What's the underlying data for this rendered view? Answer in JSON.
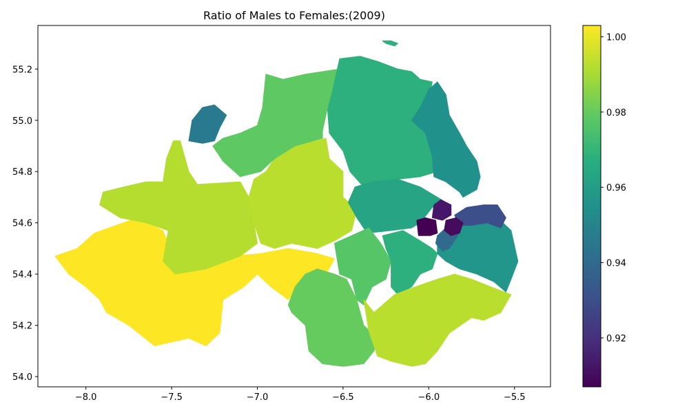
{
  "title": "Ratio of Males to Females:(2009)",
  "x_ticks": [
    {
      "value": -8.0,
      "label": "−8.0"
    },
    {
      "value": -7.5,
      "label": "−7.5"
    },
    {
      "value": -7.0,
      "label": "−7.0"
    },
    {
      "value": -6.5,
      "label": "−6.5"
    },
    {
      "value": -6.0,
      "label": "−6.0"
    },
    {
      "value": -5.5,
      "label": "−5.5"
    }
  ],
  "y_ticks": [
    {
      "value": 54.0,
      "label": "54.0"
    },
    {
      "value": 54.2,
      "label": "54.2"
    },
    {
      "value": 54.4,
      "label": "54.4"
    },
    {
      "value": 54.6,
      "label": "54.6"
    },
    {
      "value": 54.8,
      "label": "54.8"
    },
    {
      "value": 55.0,
      "label": "55.0"
    },
    {
      "value": 55.2,
      "label": "55.2"
    }
  ],
  "xlim": [
    -8.28,
    -5.29
  ],
  "ylim": [
    53.96,
    55.37
  ],
  "colorbar": {
    "range": [
      0.907,
      1.003
    ],
    "ticks": [
      {
        "value": 0.92,
        "label": "0.92"
      },
      {
        "value": 0.94,
        "label": "0.94"
      },
      {
        "value": 0.96,
        "label": "0.96"
      },
      {
        "value": 0.98,
        "label": "0.98"
      },
      {
        "value": 1.0,
        "label": "1.00"
      }
    ],
    "colormap": "viridis"
  },
  "chart_data": {
    "type": "choropleth",
    "title": "Ratio of Males to Females:(2009)",
    "xlabel": "",
    "ylabel": "",
    "regions": [
      {
        "value": 1.003,
        "outline": [
          [
            -8.18,
            54.47
          ],
          [
            -8.05,
            54.5
          ],
          [
            -7.95,
            54.56
          ],
          [
            -7.7,
            54.62
          ],
          [
            -7.55,
            54.57
          ],
          [
            -7.48,
            54.45
          ],
          [
            -7.3,
            54.42
          ],
          [
            -7.15,
            54.47
          ],
          [
            -6.98,
            54.48
          ],
          [
            -6.82,
            54.5
          ],
          [
            -6.65,
            54.48
          ],
          [
            -6.55,
            54.46
          ],
          [
            -6.6,
            54.4
          ],
          [
            -6.72,
            54.38
          ],
          [
            -6.82,
            54.3
          ],
          [
            -6.92,
            54.35
          ],
          [
            -7.0,
            54.4
          ],
          [
            -7.08,
            54.35
          ],
          [
            -7.2,
            54.3
          ],
          [
            -7.22,
            54.17
          ],
          [
            -7.3,
            54.12
          ],
          [
            -7.4,
            54.15
          ],
          [
            -7.6,
            54.12
          ],
          [
            -7.75,
            54.2
          ],
          [
            -7.88,
            54.25
          ],
          [
            -7.92,
            54.3
          ],
          [
            -8.0,
            54.35
          ],
          [
            -8.1,
            54.4
          ]
        ]
      },
      {
        "value": 0.992,
        "outline": [
          [
            -7.45,
            54.92
          ],
          [
            -7.4,
            54.8
          ],
          [
            -7.35,
            54.75
          ],
          [
            -7.1,
            54.76
          ],
          [
            -7.05,
            54.7
          ],
          [
            -7.02,
            54.6
          ],
          [
            -7.0,
            54.52
          ],
          [
            -7.1,
            54.47
          ],
          [
            -7.3,
            54.42
          ],
          [
            -7.48,
            54.4
          ],
          [
            -7.55,
            54.45
          ],
          [
            -7.52,
            54.57
          ],
          [
            -7.65,
            54.6
          ],
          [
            -7.8,
            54.62
          ],
          [
            -7.92,
            54.67
          ],
          [
            -7.9,
            54.72
          ],
          [
            -7.78,
            54.74
          ],
          [
            -7.65,
            54.76
          ],
          [
            -7.55,
            54.76
          ],
          [
            -7.53,
            54.85
          ],
          [
            -7.49,
            54.92
          ]
        ]
      },
      {
        "value": 0.993,
        "outline": [
          [
            -7.02,
            54.77
          ],
          [
            -6.95,
            54.8
          ],
          [
            -6.88,
            54.87
          ],
          [
            -6.78,
            54.9
          ],
          [
            -6.6,
            54.93
          ],
          [
            -6.58,
            54.85
          ],
          [
            -6.5,
            54.8
          ],
          [
            -6.5,
            54.7
          ],
          [
            -6.42,
            54.65
          ],
          [
            -6.45,
            54.57
          ],
          [
            -6.55,
            54.53
          ],
          [
            -6.65,
            54.5
          ],
          [
            -6.8,
            54.52
          ],
          [
            -6.9,
            54.5
          ],
          [
            -6.98,
            54.52
          ],
          [
            -7.02,
            54.6
          ],
          [
            -7.05,
            54.7
          ]
        ]
      },
      {
        "value": 0.979,
        "outline": [
          [
            -7.26,
            54.9
          ],
          [
            -7.2,
            54.93
          ],
          [
            -7.1,
            54.95
          ],
          [
            -7.0,
            54.98
          ],
          [
            -6.97,
            55.05
          ],
          [
            -6.95,
            55.18
          ],
          [
            -6.85,
            55.16
          ],
          [
            -6.72,
            55.18
          ],
          [
            -6.62,
            55.19
          ],
          [
            -6.52,
            55.2
          ],
          [
            -6.55,
            55.12
          ],
          [
            -6.59,
            55.05
          ],
          [
            -6.62,
            54.96
          ],
          [
            -6.62,
            54.93
          ],
          [
            -6.78,
            54.9
          ],
          [
            -6.9,
            54.85
          ],
          [
            -6.98,
            54.8
          ],
          [
            -7.1,
            54.78
          ],
          [
            -7.2,
            54.84
          ]
        ]
      },
      {
        "value": 0.946,
        "outline": [
          [
            -7.4,
            54.92
          ],
          [
            -7.38,
            55.0
          ],
          [
            -7.32,
            55.05
          ],
          [
            -7.25,
            55.06
          ],
          [
            -7.18,
            55.02
          ],
          [
            -7.22,
            54.97
          ],
          [
            -7.25,
            54.92
          ],
          [
            -7.32,
            54.91
          ]
        ]
      },
      {
        "value": 0.968,
        "outline": [
          [
            -6.52,
            55.24
          ],
          [
            -6.4,
            55.25
          ],
          [
            -6.3,
            55.23
          ],
          [
            -6.18,
            55.2
          ],
          [
            -6.1,
            55.19
          ],
          [
            -6.05,
            55.16
          ],
          [
            -5.98,
            55.15
          ],
          [
            -6.0,
            55.08
          ],
          [
            -6.05,
            55.02
          ],
          [
            -5.98,
            54.95
          ],
          [
            -5.95,
            54.87
          ],
          [
            -5.95,
            54.8
          ],
          [
            -6.05,
            54.78
          ],
          [
            -6.18,
            54.77
          ],
          [
            -6.33,
            54.76
          ],
          [
            -6.38,
            54.74
          ],
          [
            -6.46,
            54.8
          ],
          [
            -6.5,
            54.88
          ],
          [
            -6.58,
            54.95
          ],
          [
            -6.59,
            55.04
          ],
          [
            -6.56,
            55.12
          ]
        ]
      },
      {
        "value": 0.955,
        "outline": [
          [
            -6.05,
            55.05
          ],
          [
            -6.0,
            55.12
          ],
          [
            -5.95,
            55.15
          ],
          [
            -5.9,
            55.1
          ],
          [
            -5.88,
            55.02
          ],
          [
            -5.82,
            54.95
          ],
          [
            -5.78,
            54.9
          ],
          [
            -5.72,
            54.84
          ],
          [
            -5.7,
            54.78
          ],
          [
            -5.72,
            54.73
          ],
          [
            -5.8,
            54.7
          ],
          [
            -5.82,
            54.72
          ],
          [
            -5.9,
            54.76
          ],
          [
            -5.97,
            54.78
          ],
          [
            -5.98,
            54.86
          ],
          [
            -6.02,
            54.95
          ],
          [
            -6.1,
            55.0
          ]
        ]
      },
      {
        "value": 0.963,
        "outline": [
          [
            -6.43,
            54.74
          ],
          [
            -6.33,
            54.76
          ],
          [
            -6.18,
            54.77
          ],
          [
            -6.05,
            54.74
          ],
          [
            -5.95,
            54.7
          ],
          [
            -5.9,
            54.68
          ],
          [
            -5.98,
            54.66
          ],
          [
            -6.05,
            54.6
          ],
          [
            -6.1,
            54.58
          ],
          [
            -6.22,
            54.57
          ],
          [
            -6.36,
            54.56
          ],
          [
            -6.42,
            54.62
          ],
          [
            -6.47,
            54.68
          ]
        ]
      },
      {
        "value": 0.977,
        "outline": [
          [
            -6.55,
            54.52
          ],
          [
            -6.45,
            54.55
          ],
          [
            -6.35,
            54.58
          ],
          [
            -6.28,
            54.52
          ],
          [
            -6.22,
            54.45
          ],
          [
            -6.25,
            54.38
          ],
          [
            -6.33,
            54.35
          ],
          [
            -6.38,
            54.28
          ],
          [
            -6.42,
            54.3
          ],
          [
            -6.45,
            54.38
          ],
          [
            -6.52,
            54.4
          ]
        ]
      },
      {
        "value": 0.968,
        "outline": [
          [
            -6.27,
            54.55
          ],
          [
            -6.15,
            54.57
          ],
          [
            -6.05,
            54.53
          ],
          [
            -5.98,
            54.5
          ],
          [
            -5.95,
            54.48
          ],
          [
            -5.98,
            54.42
          ],
          [
            -6.05,
            54.4
          ],
          [
            -6.1,
            54.35
          ],
          [
            -6.18,
            54.32
          ],
          [
            -6.22,
            54.35
          ],
          [
            -6.22,
            54.45
          ],
          [
            -6.25,
            54.5
          ]
        ]
      },
      {
        "value": 0.98,
        "outline": [
          [
            -6.82,
            54.28
          ],
          [
            -6.78,
            54.35
          ],
          [
            -6.72,
            54.4
          ],
          [
            -6.65,
            54.42
          ],
          [
            -6.55,
            54.4
          ],
          [
            -6.48,
            54.38
          ],
          [
            -6.42,
            54.3
          ],
          [
            -6.38,
            54.2
          ],
          [
            -6.3,
            54.15
          ],
          [
            -6.32,
            54.1
          ],
          [
            -6.38,
            54.05
          ],
          [
            -6.5,
            54.04
          ],
          [
            -6.62,
            54.05
          ],
          [
            -6.7,
            54.1
          ],
          [
            -6.72,
            54.2
          ],
          [
            -6.8,
            54.25
          ]
        ]
      },
      {
        "value": 0.993,
        "outline": [
          [
            -6.38,
            54.3
          ],
          [
            -6.32,
            54.25
          ],
          [
            -6.2,
            54.32
          ],
          [
            -6.08,
            54.35
          ],
          [
            -5.95,
            54.38
          ],
          [
            -5.85,
            54.4
          ],
          [
            -5.75,
            54.38
          ],
          [
            -5.6,
            54.34
          ],
          [
            -5.52,
            54.32
          ],
          [
            -5.58,
            54.25
          ],
          [
            -5.68,
            54.22
          ],
          [
            -5.75,
            54.23
          ],
          [
            -5.88,
            54.17
          ],
          [
            -5.95,
            54.1
          ],
          [
            -6.02,
            54.05
          ],
          [
            -6.1,
            54.04
          ],
          [
            -6.22,
            54.06
          ],
          [
            -6.3,
            54.08
          ],
          [
            -6.35,
            54.18
          ]
        ]
      },
      {
        "value": 0.957,
        "outline": [
          [
            -5.95,
            54.55
          ],
          [
            -5.88,
            54.57
          ],
          [
            -5.75,
            54.6
          ],
          [
            -5.6,
            54.62
          ],
          [
            -5.52,
            54.57
          ],
          [
            -5.48,
            54.45
          ],
          [
            -5.52,
            54.38
          ],
          [
            -5.55,
            54.33
          ],
          [
            -5.62,
            54.37
          ],
          [
            -5.72,
            54.4
          ],
          [
            -5.82,
            54.42
          ],
          [
            -5.9,
            54.45
          ],
          [
            -5.95,
            54.48
          ]
        ]
      },
      {
        "value": 0.93,
        "outline": [
          [
            -5.85,
            54.63
          ],
          [
            -5.78,
            54.66
          ],
          [
            -5.68,
            54.67
          ],
          [
            -5.6,
            54.67
          ],
          [
            -5.55,
            54.62
          ],
          [
            -5.58,
            54.58
          ],
          [
            -5.66,
            54.6
          ],
          [
            -5.75,
            54.59
          ],
          [
            -5.82,
            54.59
          ]
        ]
      },
      {
        "value": 0.94,
        "outline": [
          [
            -5.95,
            54.55
          ],
          [
            -5.9,
            54.58
          ],
          [
            -5.85,
            54.59
          ],
          [
            -5.83,
            54.55
          ],
          [
            -5.88,
            54.5
          ],
          [
            -5.92,
            54.49
          ],
          [
            -5.96,
            54.52
          ]
        ]
      },
      {
        "value": 0.913,
        "outline": [
          [
            -5.97,
            54.67
          ],
          [
            -5.93,
            54.69
          ],
          [
            -5.87,
            54.67
          ],
          [
            -5.87,
            54.63
          ],
          [
            -5.92,
            54.61
          ],
          [
            -5.98,
            54.62
          ]
        ]
      },
      {
        "value": 0.907,
        "outline": [
          [
            -6.07,
            54.61
          ],
          [
            -6.02,
            54.62
          ],
          [
            -5.96,
            54.61
          ],
          [
            -5.95,
            54.56
          ],
          [
            -5.99,
            54.55
          ],
          [
            -6.06,
            54.55
          ]
        ]
      },
      {
        "value": 0.91,
        "outline": [
          [
            -5.9,
            54.61
          ],
          [
            -5.84,
            54.62
          ],
          [
            -5.8,
            54.6
          ],
          [
            -5.82,
            54.56
          ],
          [
            -5.87,
            54.55
          ],
          [
            -5.91,
            54.57
          ]
        ]
      },
      {
        "value": 0.968,
        "outline": [
          [
            -6.27,
            55.31
          ],
          [
            -6.22,
            55.31
          ],
          [
            -6.18,
            55.3
          ],
          [
            -6.2,
            55.29
          ],
          [
            -6.25,
            55.3
          ]
        ]
      }
    ]
  }
}
